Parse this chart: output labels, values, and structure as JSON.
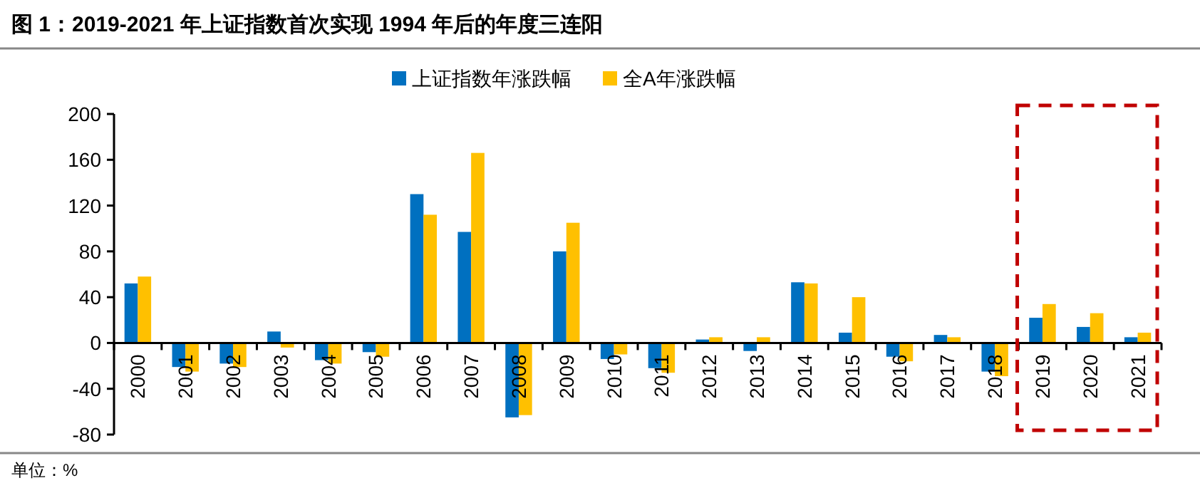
{
  "chart_data": {
    "type": "bar",
    "title": "图 1：2019-2021 年上证指数首次实现 1994 年后的年度三连阳",
    "categories": [
      "2000",
      "2001",
      "2002",
      "2003",
      "2004",
      "2005",
      "2006",
      "2007",
      "2008",
      "2009",
      "2010",
      "2011",
      "2012",
      "2013",
      "2014",
      "2015",
      "2016",
      "2017",
      "2018",
      "2019",
      "2020",
      "2021"
    ],
    "series": [
      {
        "name": "上证指数年涨跌幅",
        "color": "#0070c0",
        "values": [
          52,
          -21,
          -18,
          10,
          -15,
          -8,
          130,
          97,
          -65,
          80,
          -14,
          -22,
          3,
          -7,
          53,
          9,
          -12,
          7,
          -25,
          22,
          14,
          5
        ]
      },
      {
        "name": "全A年涨跌幅",
        "color": "#ffc000",
        "values": [
          58,
          -25,
          -21,
          -4,
          -18,
          -12,
          112,
          166,
          -63,
          105,
          -10,
          -26,
          5,
          5,
          52,
          40,
          -16,
          5,
          -29,
          34,
          26,
          9
        ]
      }
    ],
    "ylim": [
      -80,
      200
    ],
    "yticks": [
      -80,
      -40,
      0,
      40,
      80,
      120,
      160,
      200
    ],
    "legend": "top",
    "grid": false,
    "annotations": [
      "单位：%"
    ]
  }
}
